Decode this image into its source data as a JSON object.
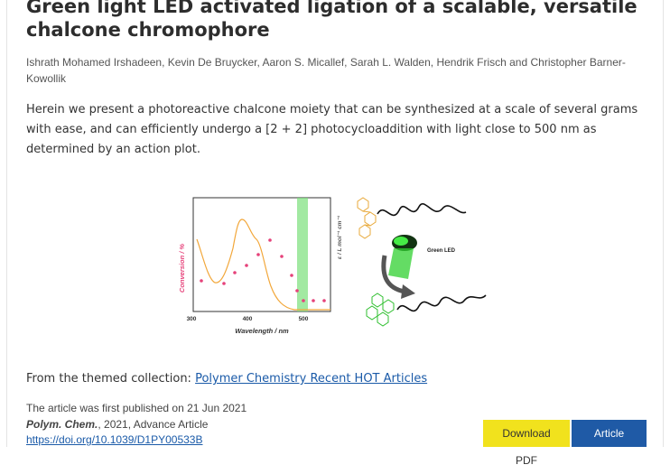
{
  "article": {
    "title_line1": "Green light LED activated ligation of a scalable, versatile",
    "title_line2": "chalcone chromophore",
    "authors_line1": "Ishrath Mohamed Irshadeen, Kevin De Bruycker, Aaron S. Micallef, Sarah L. Walden, Hendrik Frisch and Christopher Barner-",
    "authors_line2": "Kowollik",
    "abstract": "Herein we present a photoreactive chalcone moiety that can be synthesized at a scale of several grams with ease, and can efficiently undergo a [2 + 2] photocycloaddition with light close to 500 nm as determined by an action plot."
  },
  "figure": {
    "ylabel_left": "Conversion / %",
    "ylabel_right": "ε / L mol⁻¹ cm⁻¹",
    "xlabel": "Wavelength / nm",
    "xticks": [
      "300",
      "400",
      "500"
    ],
    "led_label": "Green LED",
    "colors": {
      "band": "#7be07b",
      "curve": "#f2a73a",
      "points": "#e6427a",
      "led": "#30d030"
    }
  },
  "collection": {
    "prefix": "From the themed collection: ",
    "link": "Polymer Chemistry Recent HOT Articles"
  },
  "meta": {
    "published": "The article was first published on 21 Jun 2021",
    "journal": "Polym. Chem.",
    "citation_rest": ", 2021, Advance Article",
    "doi": "https://doi.org/10.1039/D1PY00533B"
  },
  "buttons": {
    "pdf": "Download PDF",
    "html": "Article HTML"
  }
}
